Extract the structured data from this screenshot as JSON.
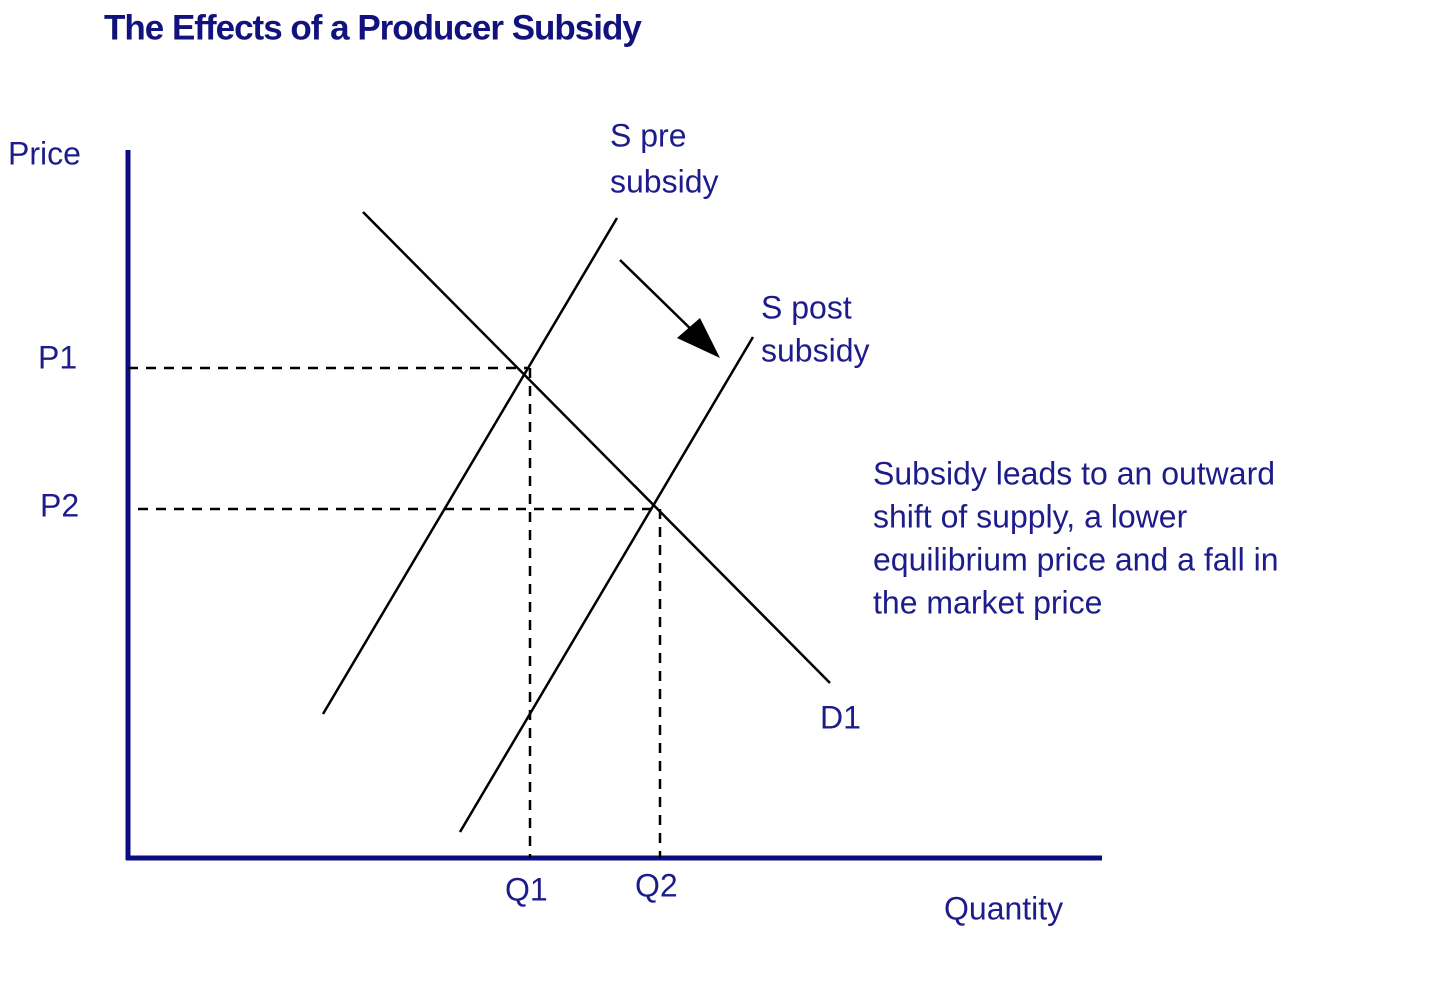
{
  "title": "The Effects of a Producer Subsidy",
  "axes": {
    "y_label": "Price",
    "x_label": "Quantity"
  },
  "prices": [
    "P1",
    "P2"
  ],
  "quantities": [
    "Q1",
    "Q2"
  ],
  "curves": [
    {
      "label": [
        "S pre",
        "subsidy"
      ]
    },
    {
      "label": [
        "S post",
        "subsidy"
      ]
    },
    {
      "label": [
        "D1"
      ]
    }
  ],
  "annotation": [
    "Subsidy leads to an outward",
    "shift of supply, a lower",
    "equilibrium price and a fall in",
    "the market price"
  ]
}
